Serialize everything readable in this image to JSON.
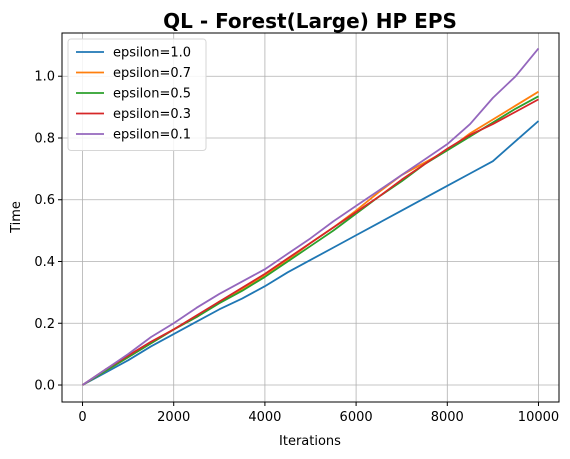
{
  "chart_data": {
    "type": "line",
    "title": "QL - Forest(Large) HP EPS",
    "xlabel": "Iterations",
    "ylabel": "Time",
    "xlim": [
      -450,
      10450
    ],
    "ylim": [
      -0.055,
      1.14
    ],
    "xticks": [
      0,
      2000,
      4000,
      6000,
      8000,
      10000
    ],
    "yticks": [
      0.0,
      0.2,
      0.4,
      0.6,
      0.8,
      1.0
    ],
    "xtick_labels": [
      "0",
      "2000",
      "4000",
      "6000",
      "8000",
      "10000"
    ],
    "ytick_labels": [
      "0.0",
      "0.2",
      "0.4",
      "0.6",
      "0.8",
      "1.0"
    ],
    "grid": true,
    "legend_position": "top-left",
    "series": [
      {
        "name": "epsilon=1.0",
        "color": "#1f77b4",
        "x": [
          0,
          500,
          1000,
          1500,
          2000,
          2500,
          3000,
          3500,
          4000,
          4500,
          5000,
          5500,
          6000,
          6500,
          7000,
          7500,
          8000,
          8500,
          9000,
          9500,
          10000
        ],
        "y": [
          0.0,
          0.04,
          0.08,
          0.125,
          0.165,
          0.205,
          0.245,
          0.28,
          0.32,
          0.365,
          0.405,
          0.445,
          0.485,
          0.525,
          0.565,
          0.605,
          0.645,
          0.685,
          0.725,
          0.79,
          0.855
        ]
      },
      {
        "name": "epsilon=0.7",
        "color": "#ff7f0e",
        "x": [
          0,
          500,
          1000,
          1500,
          2000,
          2500,
          3000,
          3500,
          4000,
          4500,
          5000,
          5500,
          6000,
          6500,
          7000,
          7500,
          8000,
          8500,
          9000,
          9500,
          10000
        ],
        "y": [
          0.0,
          0.045,
          0.09,
          0.135,
          0.18,
          0.22,
          0.27,
          0.31,
          0.355,
          0.405,
          0.46,
          0.51,
          0.565,
          0.625,
          0.68,
          0.72,
          0.76,
          0.815,
          0.86,
          0.905,
          0.95
        ]
      },
      {
        "name": "epsilon=0.5",
        "color": "#2ca02c",
        "x": [
          0,
          500,
          1000,
          1500,
          2000,
          2500,
          3000,
          3500,
          4000,
          4500,
          5000,
          5500,
          6000,
          6500,
          7000,
          7500,
          8000,
          8500,
          9000,
          9500,
          10000
        ],
        "y": [
          0.0,
          0.045,
          0.09,
          0.135,
          0.18,
          0.22,
          0.265,
          0.305,
          0.35,
          0.4,
          0.45,
          0.5,
          0.555,
          0.61,
          0.66,
          0.715,
          0.76,
          0.805,
          0.85,
          0.895,
          0.935
        ]
      },
      {
        "name": "epsilon=0.3",
        "color": "#d62728",
        "x": [
          0,
          500,
          1000,
          1500,
          2000,
          2500,
          3000,
          3500,
          4000,
          4500,
          5000,
          5500,
          6000,
          6500,
          7000,
          7500,
          8000,
          8500,
          9000,
          9500,
          10000
        ],
        "y": [
          0.0,
          0.05,
          0.095,
          0.14,
          0.18,
          0.225,
          0.27,
          0.315,
          0.36,
          0.41,
          0.46,
          0.51,
          0.56,
          0.61,
          0.665,
          0.715,
          0.765,
          0.81,
          0.845,
          0.885,
          0.925
        ]
      },
      {
        "name": "epsilon=0.1",
        "color": "#9467bd",
        "x": [
          0,
          500,
          1000,
          1500,
          2000,
          2500,
          3000,
          3500,
          4000,
          4500,
          5000,
          5500,
          6000,
          6500,
          7000,
          7500,
          8000,
          8500,
          9000,
          9500,
          10000
        ],
        "y": [
          0.0,
          0.05,
          0.1,
          0.155,
          0.2,
          0.25,
          0.295,
          0.335,
          0.375,
          0.425,
          0.475,
          0.53,
          0.58,
          0.63,
          0.68,
          0.73,
          0.78,
          0.845,
          0.93,
          1.0,
          1.09
        ]
      }
    ]
  }
}
